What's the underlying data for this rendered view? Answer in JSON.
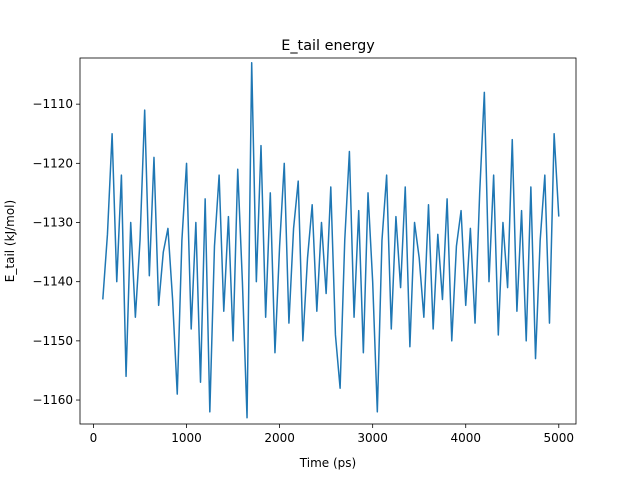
{
  "chart_data": {
    "type": "line",
    "title": "E_tail energy",
    "x_label": "Time (ps)",
    "y_label": "E_tail (kJ/mol)",
    "x": [
      100,
      150,
      200,
      250,
      300,
      350,
      400,
      450,
      500,
      550,
      600,
      650,
      700,
      750,
      800,
      850,
      900,
      950,
      1000,
      1050,
      1100,
      1150,
      1200,
      1250,
      1300,
      1350,
      1400,
      1450,
      1500,
      1550,
      1600,
      1650,
      1700,
      1750,
      1800,
      1850,
      1900,
      1950,
      2000,
      2050,
      2100,
      2150,
      2200,
      2250,
      2300,
      2350,
      2400,
      2450,
      2500,
      2550,
      2600,
      2650,
      2700,
      2750,
      2800,
      2850,
      2900,
      2950,
      3000,
      3050,
      3100,
      3150,
      3200,
      3250,
      3300,
      3350,
      3400,
      3450,
      3500,
      3550,
      3600,
      3650,
      3700,
      3750,
      3800,
      3850,
      3900,
      3950,
      4000,
      4050,
      4100,
      4150,
      4200,
      4250,
      4300,
      4350,
      4400,
      4450,
      4500,
      4550,
      4600,
      4650,
      4700,
      4750,
      4800,
      4850,
      4900,
      4950,
      5000
    ],
    "series": [
      {
        "name": "E_tail",
        "color": "#1f77b4",
        "values": [
          -1143,
          -1132,
          -1115,
          -1140,
          -1122,
          -1156,
          -1130,
          -1146,
          -1133,
          -1111,
          -1139,
          -1119,
          -1144,
          -1135,
          -1131,
          -1143,
          -1159,
          -1133,
          -1120,
          -1148,
          -1130,
          -1157,
          -1126,
          -1162,
          -1134,
          -1122,
          -1145,
          -1129,
          -1150,
          -1121,
          -1140,
          -1163,
          -1103,
          -1140,
          -1117,
          -1146,
          -1125,
          -1152,
          -1134,
          -1120,
          -1147,
          -1131,
          -1123,
          -1150,
          -1136,
          -1127,
          -1145,
          -1130,
          -1142,
          -1124,
          -1149,
          -1158,
          -1133,
          -1118,
          -1146,
          -1128,
          -1152,
          -1125,
          -1140,
          -1162,
          -1133,
          -1122,
          -1148,
          -1129,
          -1141,
          -1124,
          -1151,
          -1130,
          -1136,
          -1146,
          -1127,
          -1148,
          -1132,
          -1143,
          -1126,
          -1150,
          -1134,
          -1128,
          -1144,
          -1131,
          -1147,
          -1125,
          -1108,
          -1140,
          -1122,
          -1149,
          -1130,
          -1141,
          -1116,
          -1145,
          -1128,
          -1150,
          -1124,
          -1153,
          -1133,
          -1122,
          -1147,
          -1115,
          -1129
        ]
      }
    ],
    "xlim": [
      -145,
      5185
    ],
    "ylim": [
      -1164.05,
      -1102.2
    ],
    "xticks": [
      0,
      1000,
      2000,
      3000,
      4000,
      5000
    ],
    "yticks": [
      {
        "value": -1160,
        "label": "−1160"
      },
      {
        "value": -1150,
        "label": "−1150"
      },
      {
        "value": -1140,
        "label": "−1140"
      },
      {
        "value": -1130,
        "label": "−1130"
      },
      {
        "value": -1120,
        "label": "−1120"
      },
      {
        "value": -1110,
        "label": "−1110"
      }
    ]
  }
}
